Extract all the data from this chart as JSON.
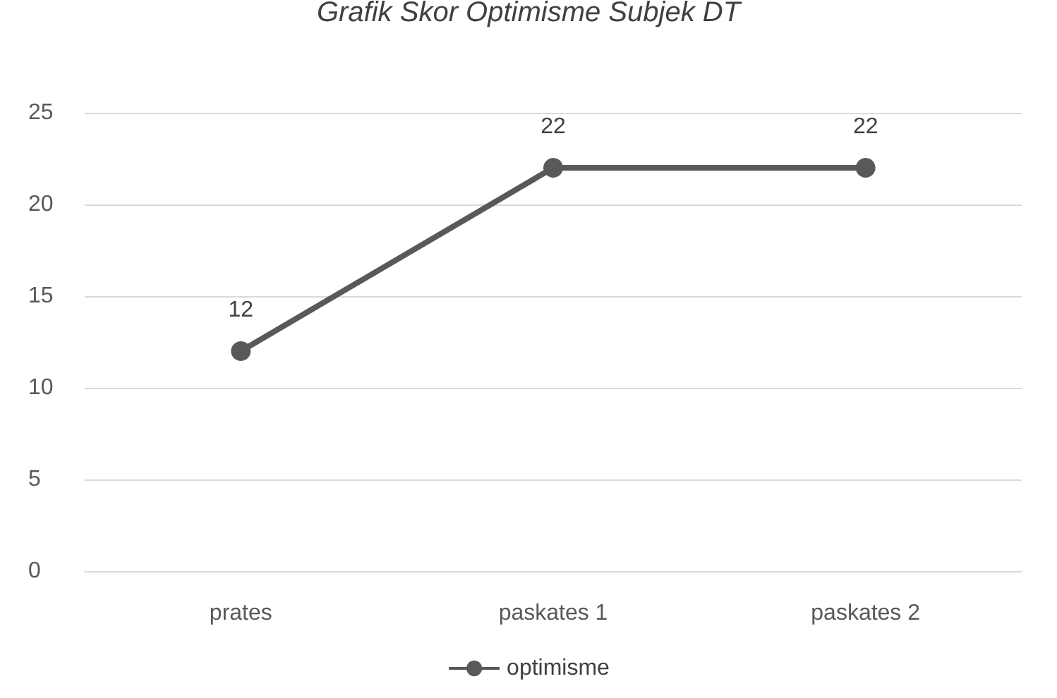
{
  "chart_data": {
    "type": "line",
    "title": "Grafik Skor Optimisme Subjek DT",
    "categories": [
      "prates",
      "paskates 1",
      "paskates 2"
    ],
    "series": [
      {
        "name": "optimisme",
        "color": "#595959",
        "values": [
          12,
          22,
          22
        ]
      }
    ],
    "ylim": [
      0,
      25
    ],
    "yticks": [
      0,
      5,
      10,
      15,
      20,
      25
    ],
    "grid": "y",
    "legend": "bottom",
    "marker": "circle",
    "data_labels": true
  }
}
